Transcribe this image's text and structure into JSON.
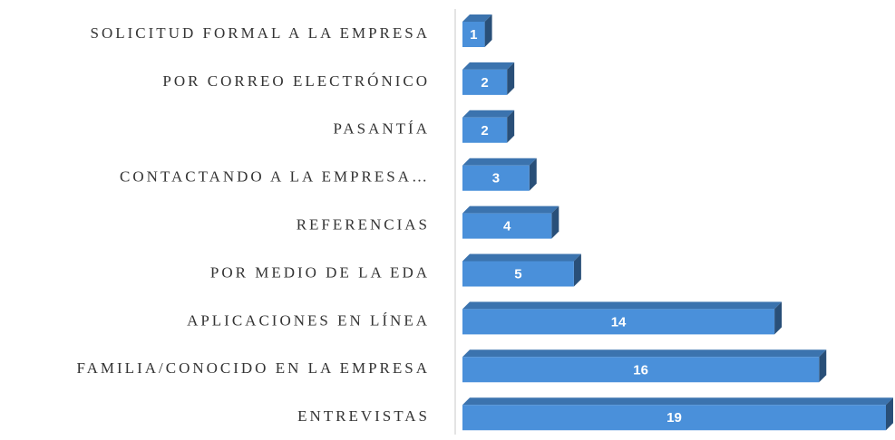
{
  "chart_data": {
    "type": "bar",
    "orientation": "horizontal",
    "categories": [
      "SOLICITUD FORMAL A LA EMPRESA",
      "POR CORREO ELECTRÓNICO",
      "PASANTÍA",
      "CONTACTANDO A LA EMPRESA…",
      "REFERENCIAS",
      "POR MEDIO DE LA EDA",
      "APLICACIONES EN LÍNEA",
      "FAMILIA/CONOCIDO EN LA EMPRESA",
      "ENTREVISTAS"
    ],
    "values": [
      1,
      2,
      2,
      3,
      4,
      5,
      14,
      16,
      19
    ],
    "color": "#4a90da"
  }
}
